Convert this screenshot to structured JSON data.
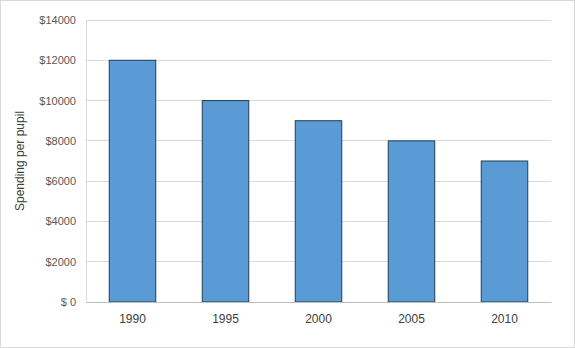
{
  "chart_data": {
    "type": "bar",
    "y_label": "Spending per pupil",
    "categories": [
      "1990",
      "1995",
      "2000",
      "2005",
      "2010"
    ],
    "values": [
      12000,
      10000,
      9000,
      8000,
      7000
    ],
    "color": "#5b9bd5",
    "ylim": [
      0,
      14000
    ],
    "yticks": [
      {
        "value": 0,
        "label": "$ 0"
      },
      {
        "value": 2000,
        "label": "$2000"
      },
      {
        "value": 4000,
        "label": "$4000"
      },
      {
        "value": 6000,
        "label": "$6000"
      },
      {
        "value": 8000,
        "label": "$8000"
      },
      {
        "value": 10000,
        "label": "$10000"
      },
      {
        "value": 12000,
        "label": "$12000"
      },
      {
        "value": 14000,
        "label": "$14000"
      }
    ],
    "grid": true
  }
}
